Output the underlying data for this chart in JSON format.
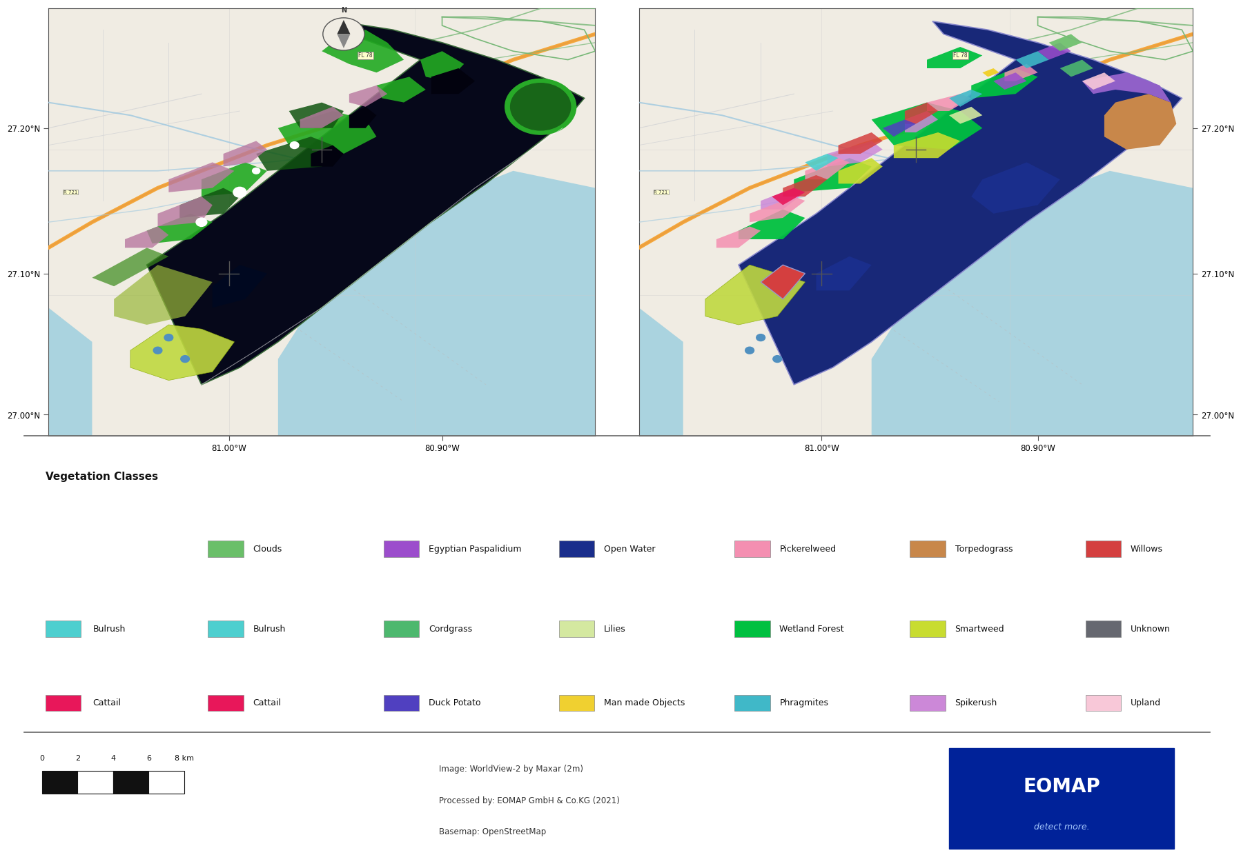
{
  "figsize": [
    17.53,
    12.4
  ],
  "dpi": 100,
  "bg_color": "#ffffff",
  "map_bg_land": "#f0ece3",
  "map_bg_water": "#aad3df",
  "lake_water": "#aad3df",
  "legend_title": "Vegetation Classes",
  "legend_items_row0": [
    {
      "label": "Clouds",
      "color": "#6abf69"
    },
    {
      "label": "Egyptian Paspalidium",
      "color": "#9c4dcc"
    },
    {
      "label": "Open Water",
      "color": "#1a2e8c"
    },
    {
      "label": "Pickerelweed",
      "color": "#f48fb1"
    },
    {
      "label": "Torpedograss",
      "color": "#c8874a"
    },
    {
      "label": "Willows",
      "color": "#d43f3f"
    }
  ],
  "legend_items_row1": [
    {
      "label": "Bulrush",
      "color": "#4dcfcf"
    },
    {
      "label": "Cordgrass",
      "color": "#4db86e"
    },
    {
      "label": "Lilies",
      "color": "#d4e8a0"
    },
    {
      "label": "Wetland Forest",
      "color": "#00c040"
    },
    {
      "label": "Smartweed",
      "color": "#c8dc30"
    },
    {
      "label": "Unknown",
      "color": "#666870"
    }
  ],
  "legend_items_row2": [
    {
      "label": "Cattail",
      "color": "#e8175a"
    },
    {
      "label": "Duck Potato",
      "color": "#5040c0"
    },
    {
      "label": "Man made Objects",
      "color": "#f0d030"
    },
    {
      "label": "Phragmites",
      "color": "#40b8c8"
    },
    {
      "label": "Spikerush",
      "color": "#cc88d8"
    },
    {
      "label": "Upland",
      "color": "#f8c8d8"
    }
  ],
  "credit_text1": "Image: WorldView-2 by Maxar (2m)",
  "credit_text2": "Processed by: EOMAP GmbH & Co.KG (2021)",
  "credit_text3": "Basemap: OpenStreetMap",
  "scale_labels": [
    "0",
    "2",
    "4",
    "6",
    "8 km"
  ],
  "xtick_labels": [
    "81.00°W",
    "80.90°W"
  ],
  "ytick_labels_left": [
    "27.00°N",
    "27.10°N",
    "27.20°N"
  ],
  "ytick_labels_right": [
    "27.00°N",
    "27.10°N",
    "27.20°N"
  ],
  "road_color": "#f5a533",
  "canal_color": "#9ec8e0",
  "boundary_color": "#78b878",
  "sat_edge_color": "#50a850",
  "map_sep_color": "#888888",
  "compass_color": "#555555"
}
